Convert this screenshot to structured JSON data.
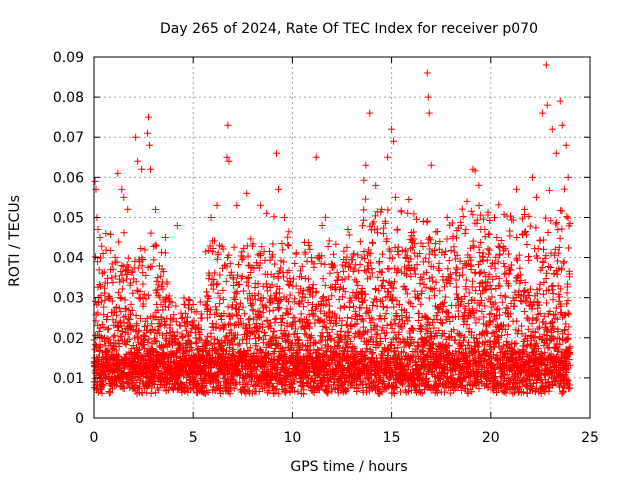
{
  "chart_data": {
    "type": "scatter",
    "title": "Day 265 of 2024, Rate Of TEC Index for receiver p070",
    "xlabel": "GPS time / hours",
    "ylabel": "ROTI / TECUs",
    "xlim": [
      0,
      25
    ],
    "ylim": [
      0,
      0.09
    ],
    "x_ticks": [
      0,
      5,
      10,
      15,
      20,
      25
    ],
    "y_ticks": [
      0,
      0.01,
      0.02,
      0.03,
      0.04,
      0.05,
      0.06,
      0.07,
      0.08,
      0.09
    ],
    "grid": true,
    "legend": "none",
    "marker": "plus",
    "color": "#ff0000",
    "data_span_hours": [
      0,
      24
    ],
    "series": [
      {
        "points": [
          [
            0.05,
            0.059
          ],
          [
            0.1,
            0.057
          ],
          [
            0.15,
            0.05
          ],
          [
            0.2,
            0.047
          ],
          [
            0.3,
            0.045
          ],
          [
            0.6,
            0.046
          ],
          [
            1.2,
            0.061
          ],
          [
            1.4,
            0.057
          ],
          [
            1.5,
            0.055
          ],
          [
            1.7,
            0.052
          ],
          [
            2.1,
            0.07
          ],
          [
            2.2,
            0.064
          ],
          [
            2.4,
            0.062
          ],
          [
            2.7,
            0.071
          ],
          [
            2.75,
            0.075
          ],
          [
            2.8,
            0.068
          ],
          [
            2.85,
            0.062
          ],
          [
            3.1,
            0.052
          ],
          [
            3.6,
            0.045
          ],
          [
            4.2,
            0.048
          ],
          [
            5.9,
            0.05
          ],
          [
            6.2,
            0.053
          ],
          [
            6.7,
            0.065
          ],
          [
            6.75,
            0.073
          ],
          [
            6.8,
            0.064
          ],
          [
            7.2,
            0.053
          ],
          [
            7.7,
            0.056
          ],
          [
            8.4,
            0.053
          ],
          [
            8.7,
            0.051
          ],
          [
            9.2,
            0.066
          ],
          [
            9.3,
            0.057
          ],
          [
            9.6,
            0.05
          ],
          [
            11.2,
            0.065
          ],
          [
            11.5,
            0.048
          ],
          [
            12.8,
            0.047
          ],
          [
            13.7,
            0.063
          ],
          [
            13.9,
            0.076
          ],
          [
            14.2,
            0.058
          ],
          [
            14.5,
            0.052
          ],
          [
            14.8,
            0.065
          ],
          [
            15.0,
            0.072
          ],
          [
            15.1,
            0.069
          ],
          [
            15.2,
            0.055
          ],
          [
            16.6,
            0.049
          ],
          [
            16.8,
            0.086
          ],
          [
            16.85,
            0.08
          ],
          [
            16.9,
            0.076
          ],
          [
            17.0,
            0.063
          ],
          [
            17.8,
            0.05
          ],
          [
            18.5,
            0.048
          ],
          [
            18.8,
            0.054
          ],
          [
            19.1,
            0.062
          ],
          [
            19.4,
            0.058
          ],
          [
            19.7,
            0.047
          ],
          [
            20.3,
            0.045
          ],
          [
            21.3,
            0.057
          ],
          [
            21.7,
            0.052
          ],
          [
            22.1,
            0.06
          ],
          [
            22.3,
            0.055
          ],
          [
            22.6,
            0.076
          ],
          [
            22.8,
            0.088
          ],
          [
            22.85,
            0.078
          ],
          [
            23.1,
            0.072
          ],
          [
            23.3,
            0.066
          ],
          [
            23.5,
            0.079
          ],
          [
            23.6,
            0.073
          ],
          [
            23.8,
            0.068
          ],
          [
            23.9,
            0.06
          ]
        ]
      }
    ]
  }
}
